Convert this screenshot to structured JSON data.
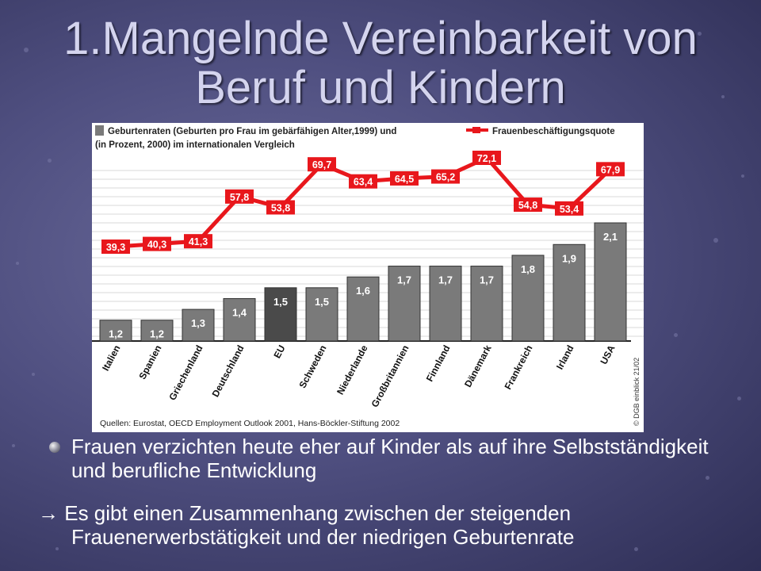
{
  "slide": {
    "title_line1": "1.Mangelnde Vereinbarkeit von",
    "title_line2": "Beruf und Kindern",
    "bullet1": "Frauen verzichten heute eher auf Kinder als auf ihre Selbstständigkeit und berufliche Entwicklung",
    "arrow_line1": "→ Es gibt einen Zusammenhang zwischen der steigenden",
    "arrow_line2": "Frauenerwerbstätigkeit und der niedrigen Geburtenrate",
    "background_color": "#4f4f80"
  },
  "chart_data": {
    "type": "bar",
    "legend_bar_label_line1": "Geburtenraten (Geburten pro Frau im gebärfähigen Alter,1999) und",
    "legend_bar_label_line2": "(in Prozent, 2000) im internationalen Vergleich",
    "legend_line_label": "Frauenbeschäftigungsquote",
    "categories": [
      "Italien",
      "Spanien",
      "Griechenland",
      "Deutschland",
      "EU",
      "Schweden",
      "Niederlande",
      "Großbritannien",
      "Finnland",
      "Dänemark",
      "Frankreich",
      "Irland",
      "USA"
    ],
    "series": [
      {
        "name": "Geburtenraten",
        "type": "bar",
        "values": [
          1.2,
          1.2,
          1.3,
          1.4,
          1.5,
          1.5,
          1.6,
          1.7,
          1.7,
          1.7,
          1.8,
          1.9,
          2.1
        ],
        "labels": [
          "1,2",
          "1,2",
          "1,3",
          "1,4",
          "1,5",
          "1,5",
          "1,6",
          "1,7",
          "1,7",
          "1,7",
          "1,8",
          "1,9",
          "2,1"
        ],
        "color": "#7a7a7a"
      },
      {
        "name": "Frauenbeschäftigungsquote",
        "type": "line",
        "values": [
          39.3,
          40.3,
          41.3,
          57.8,
          53.8,
          69.7,
          63.4,
          64.5,
          65.2,
          72.1,
          54.8,
          53.4,
          67.9
        ],
        "labels": [
          "39,3",
          "40,3",
          "41,3",
          "57,8",
          "53,8",
          "69,7",
          "63,4",
          "64,5",
          "65,2",
          "72,1",
          "54,8",
          "53,4",
          "67,9"
        ],
        "color": "#e8171c"
      }
    ],
    "source": "Quellen: Eurostat, OECD Employment Outlook 2001, Hans-Böckler-Stiftung 2002",
    "credit": "© DGB einblick 21/02",
    "grid": true
  }
}
